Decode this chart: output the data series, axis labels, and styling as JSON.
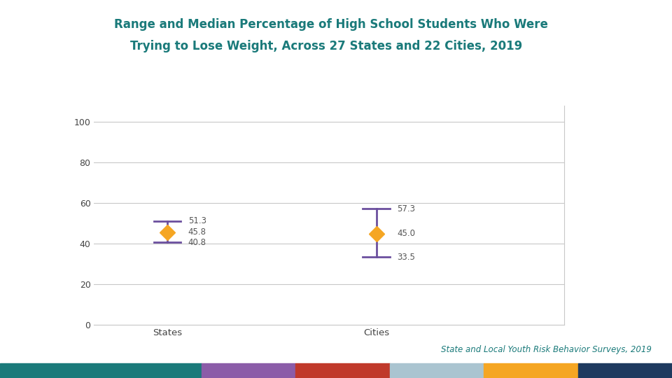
{
  "title_line1": "Range and Median Percentage of High School Students Who Were",
  "title_line2": "    Trying to Lose Weight, Across 27 States and 22 Cities, 2019",
  "title_color": "#1a7a7a",
  "categories": [
    "States",
    "Cities"
  ],
  "medians": [
    45.8,
    45.0
  ],
  "highs": [
    51.3,
    57.3
  ],
  "lows": [
    40.8,
    33.5
  ],
  "marker_color": "#f5a623",
  "line_color": "#6b4f9e",
  "annotation_color": "#555555",
  "annotation_fontsize": 8.5,
  "xlabel_fontsize": 9.5,
  "yticks": [
    0,
    20,
    40,
    60,
    80,
    100
  ],
  "ylim": [
    0,
    108
  ],
  "background_color": "#ffffff",
  "grid_color": "#c8c8c8",
  "footer_text": "State and Local Youth Risk Behavior Surveys, 2019",
  "footer_color": "#1a7a7a",
  "footer_fontsize": 8.5,
  "bar_colors": [
    "#1a7a7a",
    "#8b5ca8",
    "#c0392b",
    "#aac4d0",
    "#f5a623",
    "#1e3a5f"
  ],
  "bar_fractions": [
    0.3,
    0.14,
    0.14,
    0.14,
    0.14,
    0.14
  ]
}
